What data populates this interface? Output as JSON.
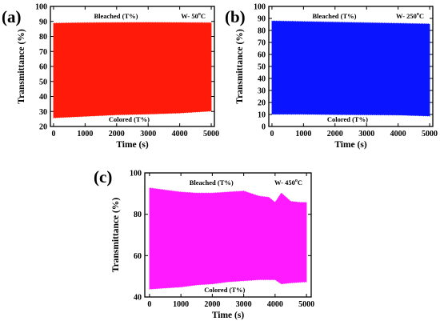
{
  "chart_data": [
    {
      "panel_label": "(a)",
      "type": "area",
      "annotation": "W- 50",
      "annotation_sup": "o",
      "annotation_unit": "C",
      "top_label": "Bleached (T%)",
      "bottom_label": "Colored (T%)",
      "xlabel": "Time (s)",
      "ylabel": "Transmittance (%)",
      "xlim": [
        -100,
        5100
      ],
      "ylim": [
        20,
        100
      ],
      "xticks": [
        0,
        1000,
        2000,
        3000,
        4000,
        5000
      ],
      "yticks": [
        20,
        30,
        40,
        50,
        60,
        70,
        80,
        90,
        100
      ],
      "color": "#ff1a0a",
      "series": [
        {
          "name": "Bleached (T%)",
          "x": [
            0,
            1000,
            2000,
            3000,
            4000,
            5000
          ],
          "values": [
            88.5,
            88.8,
            88.9,
            89.0,
            88.9,
            88.8
          ]
        },
        {
          "name": "Colored (T%)",
          "x": [
            0,
            1000,
            2000,
            3000,
            4000,
            5000
          ],
          "values": [
            26.0,
            27.0,
            28.0,
            28.5,
            29.2,
            30.5
          ]
        }
      ]
    },
    {
      "panel_label": "(b)",
      "type": "area",
      "annotation": "W- 250",
      "annotation_sup": "o",
      "annotation_unit": "C",
      "top_label": "Bleached (T%)",
      "bottom_label": "Colored (T%)",
      "xlabel": "Time (s)",
      "ylabel": "Transmittance (%)",
      "xlim": [
        -100,
        5100
      ],
      "ylim": [
        0,
        100
      ],
      "xticks": [
        0,
        1000,
        2000,
        3000,
        4000,
        5000
      ],
      "yticks": [
        0,
        10,
        20,
        30,
        40,
        50,
        60,
        70,
        80,
        90,
        100
      ],
      "color": "#0a14ff",
      "series": [
        {
          "name": "Bleached (T%)",
          "x": [
            0,
            1000,
            2000,
            3000,
            4000,
            5000
          ],
          "values": [
            87.5,
            87.0,
            86.5,
            86.0,
            85.5,
            85.0
          ]
        },
        {
          "name": "Colored (T%)",
          "x": [
            0,
            1000,
            2000,
            3000,
            4000,
            5000
          ],
          "values": [
            10.5,
            10.5,
            10.2,
            10.0,
            9.8,
            9.0
          ]
        }
      ]
    },
    {
      "panel_label": "(c)",
      "type": "area",
      "annotation": "W- 450",
      "annotation_sup": "o",
      "annotation_unit": "C",
      "top_label": "Bleached (T%)",
      "bottom_label": "Colored (T%)",
      "xlabel": "Time (s)",
      "ylabel": "Transmittance (%)",
      "xlim": [
        -150,
        5150
      ],
      "ylim": [
        40,
        100
      ],
      "xticks": [
        0,
        1000,
        2000,
        3000,
        4000,
        5000
      ],
      "yticks": [
        40,
        60,
        80,
        100
      ],
      "color": "#ff1aff",
      "series": [
        {
          "name": "Bleached (T%)",
          "x": [
            0,
            500,
            1000,
            1500,
            2000,
            2500,
            3000,
            3500,
            3800,
            4000,
            4200,
            4500,
            4800,
            5000
          ],
          "values": [
            92.5,
            91.5,
            90.5,
            90.0,
            90.0,
            90.5,
            91.0,
            88.5,
            88.0,
            85.5,
            90.0,
            86.0,
            85.5,
            85.5
          ]
        },
        {
          "name": "Colored (T%)",
          "x": [
            0,
            500,
            1000,
            1500,
            2000,
            2500,
            3000,
            3500,
            4000,
            4200,
            4500,
            5000
          ],
          "values": [
            44.0,
            44.5,
            45.0,
            46.0,
            46.5,
            47.5,
            48.0,
            48.5,
            48.5,
            46.5,
            47.0,
            47.5
          ]
        }
      ]
    }
  ]
}
